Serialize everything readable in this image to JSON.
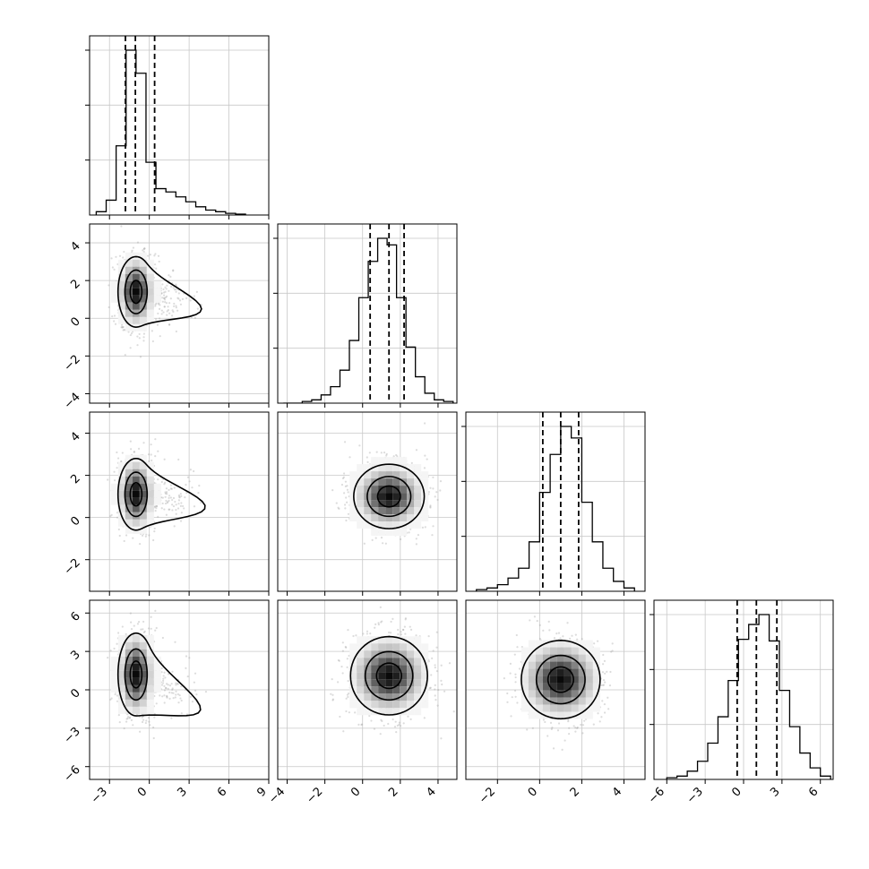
{
  "chart_data": {
    "type": "corner",
    "parameters": 4,
    "grid": true,
    "axes": [
      {
        "index": 0,
        "range": [
          -4.5,
          9.0
        ],
        "ticks": [
          -3,
          0,
          3,
          6,
          9
        ],
        "tick_labels": [
          "−3",
          "0",
          "3",
          "6",
          "9"
        ]
      },
      {
        "index": 1,
        "range": [
          -4.5,
          5.0
        ],
        "ticks": [
          -4,
          -2,
          0,
          2,
          4
        ],
        "tick_labels": [
          "−4",
          "−2",
          "0",
          "2",
          "4"
        ]
      },
      {
        "index": 2,
        "range": [
          -3.5,
          5.0
        ],
        "ticks": [
          -2,
          0,
          2,
          4
        ],
        "tick_labels": [
          "−2",
          "0",
          "2",
          "4"
        ]
      },
      {
        "index": 3,
        "range": [
          -7.0,
          7.0
        ],
        "ticks": [
          -6,
          -3,
          0,
          3,
          6
        ],
        "tick_labels": [
          "−6",
          "−3",
          "0",
          "3",
          "6"
        ]
      }
    ],
    "diagonal_histograms": [
      {
        "index": 0,
        "bin_edges": [
          -4.0,
          -3.25,
          -2.5,
          -1.75,
          -1.0,
          -0.25,
          0.5,
          1.25,
          2.0,
          2.75,
          3.5,
          4.25,
          5.0,
          5.75,
          6.5,
          7.25
        ],
        "counts": [
          0.02,
          0.09,
          0.42,
          1.0,
          0.86,
          0.32,
          0.16,
          0.14,
          0.11,
          0.08,
          0.05,
          0.03,
          0.02,
          0.01,
          0.005
        ],
        "quantiles": [
          -1.8,
          -1.05,
          0.4
        ]
      },
      {
        "index": 1,
        "bin_edges": [
          -4.2,
          -3.7,
          -3.2,
          -2.7,
          -2.2,
          -1.7,
          -1.2,
          -0.7,
          -0.2,
          0.3,
          0.8,
          1.3,
          1.8,
          2.3,
          2.8,
          3.3,
          3.8,
          4.3,
          4.8
        ],
        "counts": [
          0.0,
          0.0,
          0.01,
          0.02,
          0.05,
          0.1,
          0.2,
          0.38,
          0.64,
          0.86,
          1.0,
          0.96,
          0.64,
          0.34,
          0.16,
          0.06,
          0.02,
          0.01
        ],
        "quantiles": [
          0.4,
          1.4,
          2.2
        ]
      },
      {
        "index": 2,
        "bin_edges": [
          -3.0,
          -2.5,
          -2.0,
          -1.5,
          -1.0,
          -0.5,
          0.0,
          0.5,
          1.0,
          1.5,
          2.0,
          2.5,
          3.0,
          3.5,
          4.0,
          4.5
        ],
        "counts": [
          0.01,
          0.02,
          0.04,
          0.08,
          0.14,
          0.3,
          0.6,
          0.83,
          1.0,
          0.93,
          0.54,
          0.3,
          0.14,
          0.06,
          0.02
        ],
        "quantiles": [
          0.15,
          1.0,
          1.85
        ]
      },
      {
        "index": 3,
        "bin_edges": [
          -6.0,
          -5.2,
          -4.4,
          -3.6,
          -2.8,
          -2.0,
          -1.2,
          -0.4,
          0.4,
          1.2,
          2.0,
          2.8,
          3.6,
          4.4,
          5.2,
          6.0,
          6.8
        ],
        "counts": [
          0.01,
          0.02,
          0.05,
          0.11,
          0.22,
          0.38,
          0.6,
          0.85,
          0.94,
          1.0,
          0.84,
          0.54,
          0.32,
          0.16,
          0.07,
          0.02
        ],
        "quantiles": [
          -0.5,
          1.0,
          2.6
        ]
      }
    ],
    "pair_density": [
      {
        "x": 0,
        "y": 1,
        "center": [
          -1.0,
          1.4
        ],
        "spread": [
          0.8,
          1.1
        ],
        "tail_to": [
          3.0,
          0.8
        ]
      },
      {
        "x": 0,
        "y": 2,
        "center": [
          -1.0,
          1.1
        ],
        "spread": [
          0.8,
          1.0
        ],
        "tail_to": [
          3.3,
          0.7
        ]
      },
      {
        "x": 1,
        "y": 2,
        "center": [
          1.4,
          1.0
        ],
        "spread": [
          1.1,
          0.9
        ],
        "tail_to": null
      },
      {
        "x": 0,
        "y": 3,
        "center": [
          -1.0,
          1.2
        ],
        "spread": [
          0.8,
          1.9
        ],
        "tail_to": [
          3.0,
          -0.5
        ]
      },
      {
        "x": 1,
        "y": 3,
        "center": [
          1.4,
          1.1
        ],
        "spread": [
          1.2,
          1.8
        ],
        "tail_to": null
      },
      {
        "x": 2,
        "y": 3,
        "center": [
          1.0,
          0.8
        ],
        "spread": [
          1.1,
          1.8
        ],
        "tail_to": null
      }
    ]
  }
}
